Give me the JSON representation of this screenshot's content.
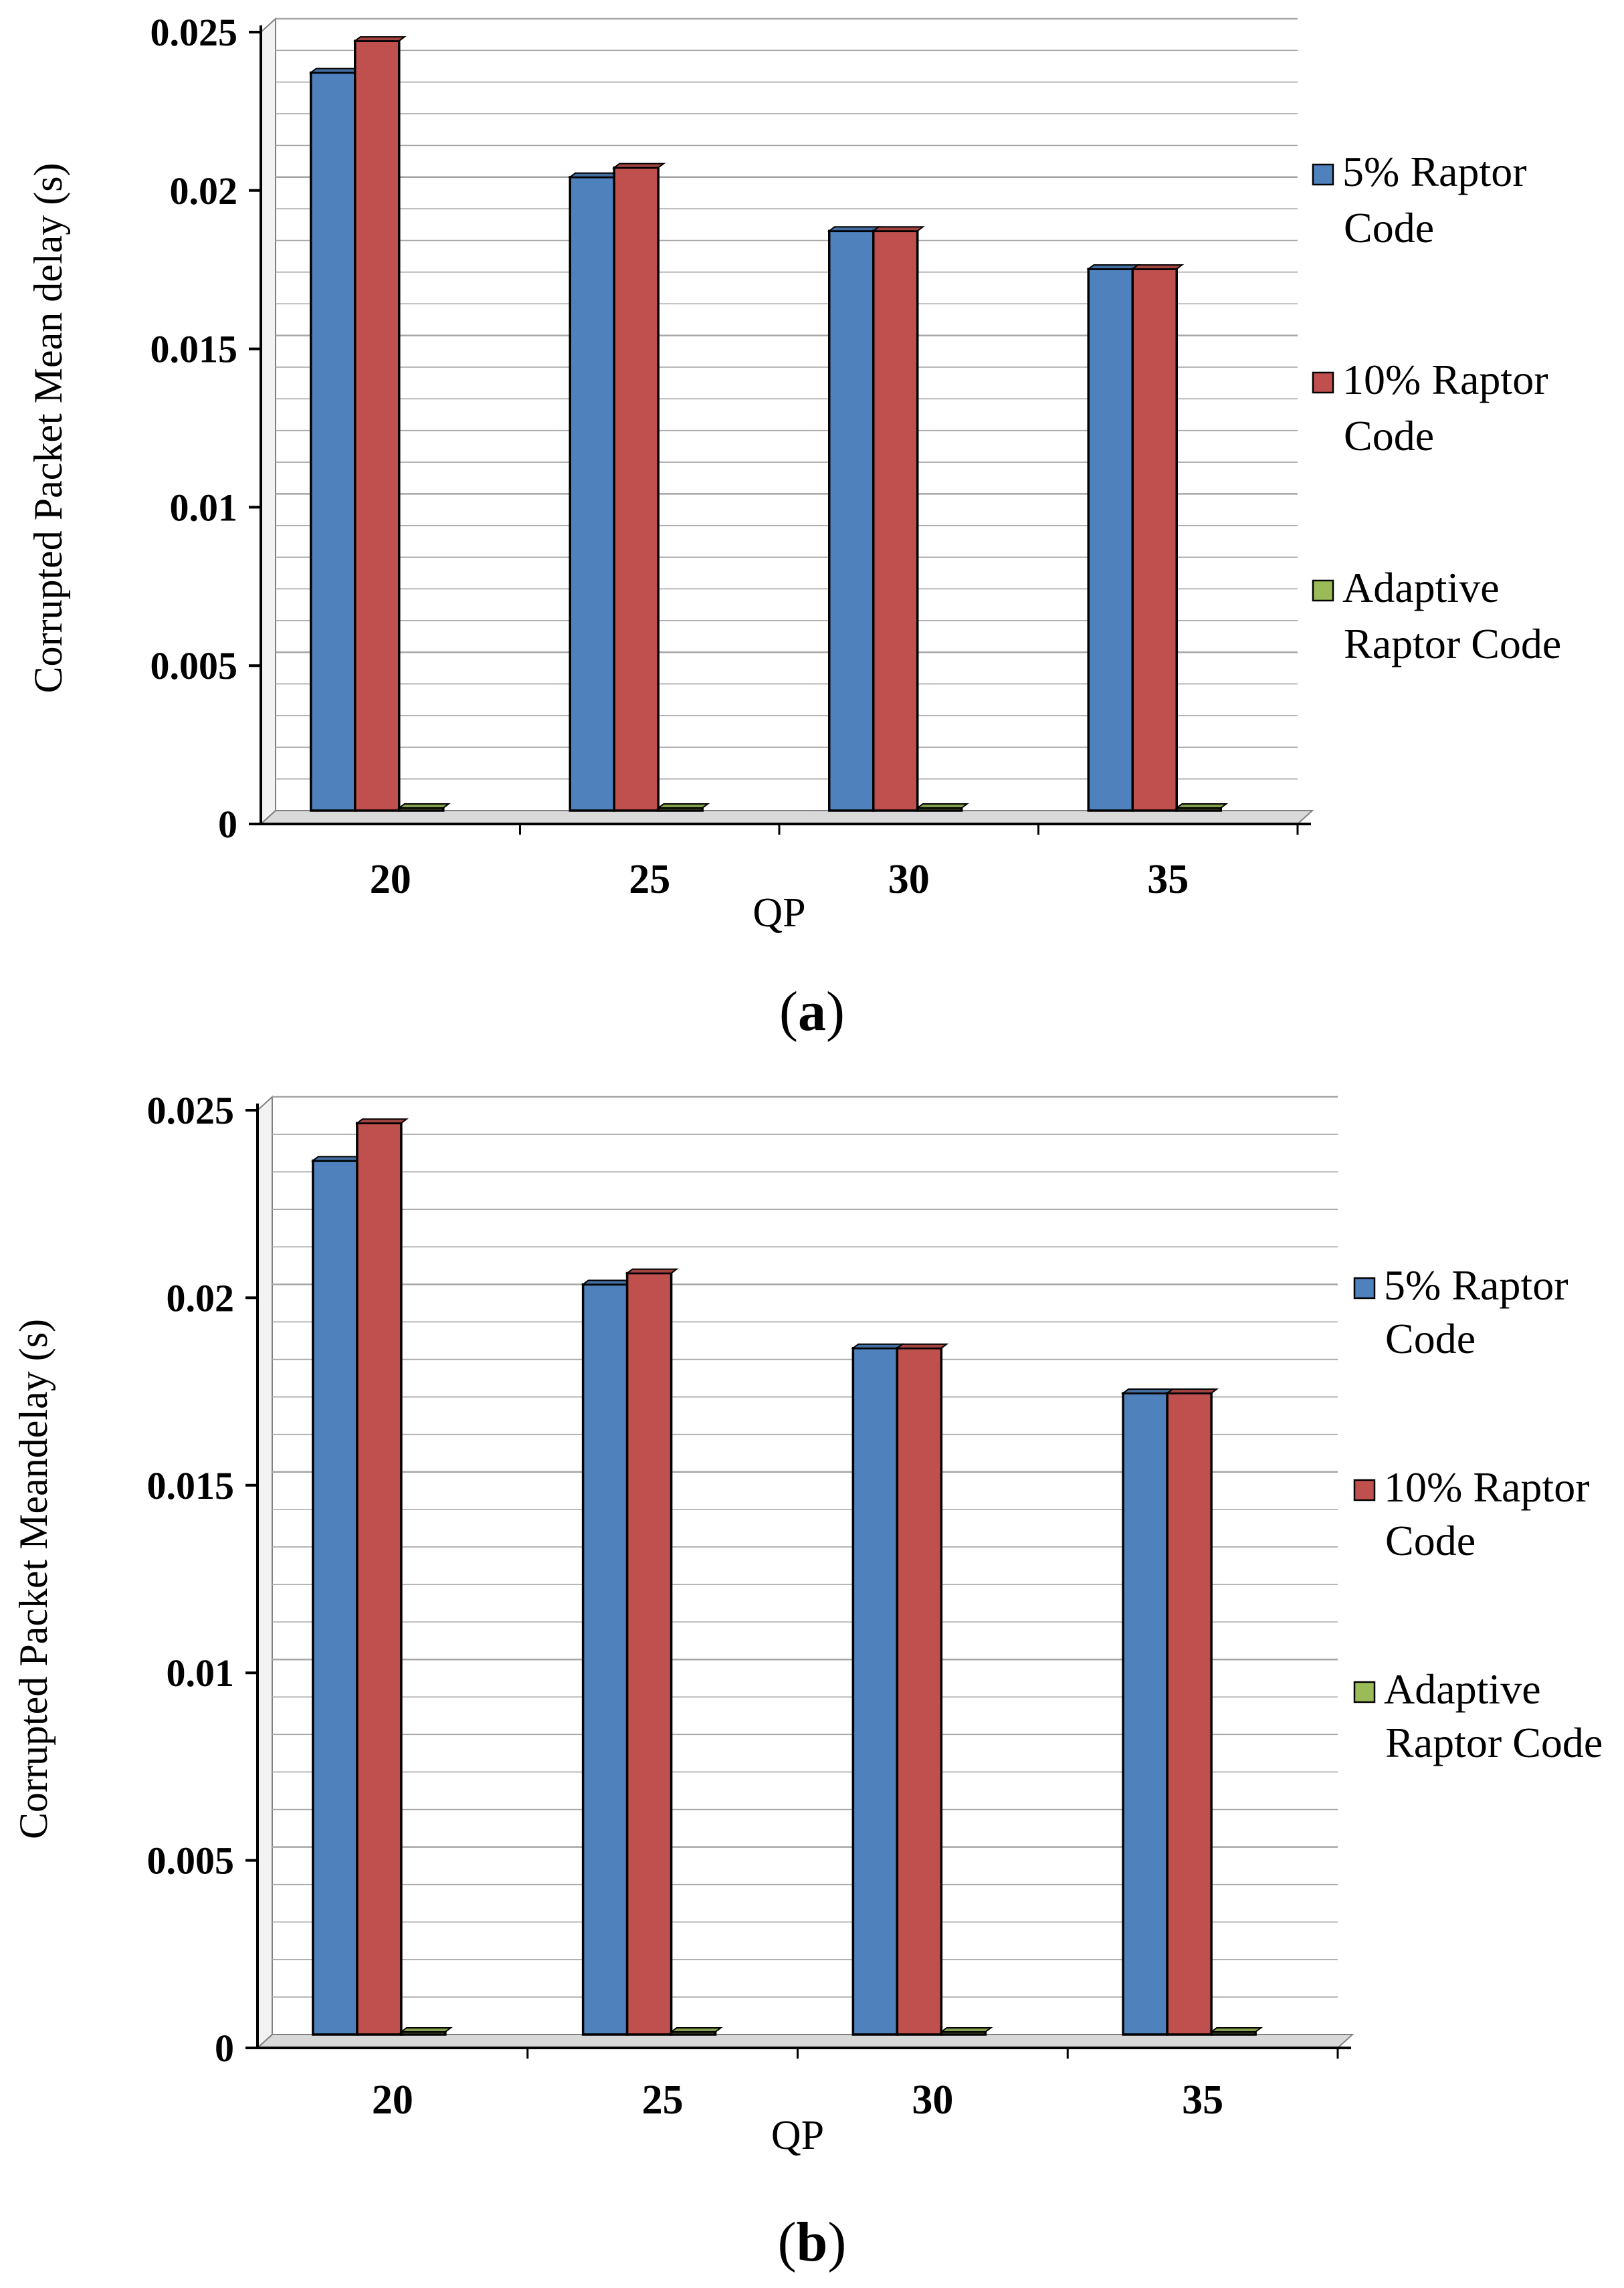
{
  "colors": {
    "series_5": "#4f81bd",
    "series_10": "#c0504d",
    "series_adaptive": "#9bbb59",
    "grid": "#a6a6a6",
    "axis": "#000000",
    "floor": "#d9d9d9",
    "wall": "#f2f2f2"
  },
  "chart_data": [
    {
      "type": "bar",
      "panel": "(a)",
      "panel_letter": "a",
      "title": "",
      "xlabel": "QP",
      "ylabel": "Corrupted Packet Mean delay (s)",
      "categories": [
        "20",
        "25",
        "30",
        "35"
      ],
      "ylim": [
        0,
        0.025
      ],
      "yticks": [
        "0",
        "0.005",
        "0.01",
        "0.015",
        "0.02",
        "0.025"
      ],
      "gridlines": true,
      "legend_position": "right",
      "series": [
        {
          "name": "5% Raptor Code",
          "legend_lines": [
            "5% Raptor",
            "Code"
          ],
          "color": "#4f81bd",
          "values": [
            0.0233,
            0.02,
            0.0183,
            0.0171
          ]
        },
        {
          "name": "10% Raptor Code",
          "legend_lines": [
            "10% Raptor",
            "Code"
          ],
          "color": "#c0504d",
          "values": [
            0.0243,
            0.0203,
            0.0183,
            0.0171
          ]
        },
        {
          "name": "Adaptive Raptor Code",
          "legend_lines": [
            "Adaptive",
            "Raptor Code"
          ],
          "color": "#9bbb59",
          "values": [
            0,
            0,
            0,
            0
          ]
        }
      ]
    },
    {
      "type": "bar",
      "panel": "(b)",
      "panel_letter": "b",
      "title": "",
      "xlabel": "QP",
      "ylabel": "Corrupted Packet Meandelay (s)",
      "categories": [
        "20",
        "25",
        "30",
        "35"
      ],
      "ylim": [
        0,
        0.025
      ],
      "yticks": [
        "0",
        "0.005",
        "0.01",
        "0.015",
        "0.02",
        "0.025"
      ],
      "gridlines": true,
      "legend_position": "right",
      "series": [
        {
          "name": "5%  Raptor Code",
          "legend_lines": [
            "5%  Raptor",
            "Code"
          ],
          "color": "#4f81bd",
          "values": [
            0.0233,
            0.02,
            0.0183,
            0.0171
          ]
        },
        {
          "name": "10%  Raptor Code",
          "legend_lines": [
            "10%  Raptor",
            "Code"
          ],
          "color": "#c0504d",
          "values": [
            0.0243,
            0.0203,
            0.0183,
            0.0171
          ]
        },
        {
          "name": "Adaptive Raptor Code",
          "legend_lines": [
            "Adaptive",
            "Raptor Code"
          ],
          "color": "#9bbb59",
          "values": [
            0,
            0,
            0,
            0
          ]
        }
      ]
    }
  ]
}
